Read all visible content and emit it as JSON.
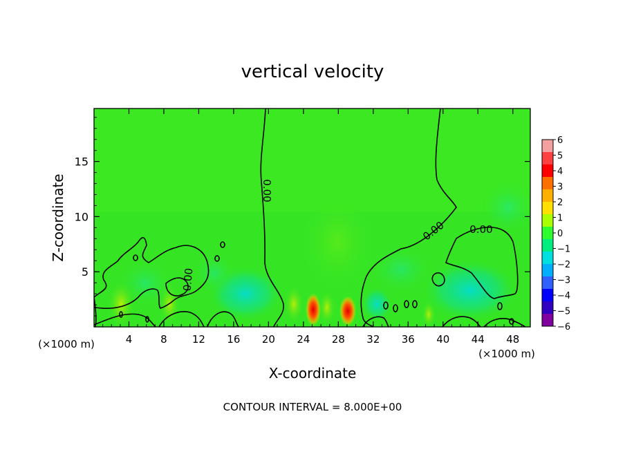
{
  "chart_data": {
    "type": "heatmap",
    "title": "vertical velocity",
    "xlabel": "X-coordinate",
    "ylabel": "Z-coordinate",
    "x_unit": "(×1000 m)",
    "y_unit": "(×1000 m)",
    "xlim": [
      0,
      50
    ],
    "ylim": [
      0,
      19.8
    ],
    "x_ticks": [
      "4",
      "8",
      "12",
      "16",
      "20",
      "24",
      "28",
      "32",
      "36",
      "40",
      "44",
      "48"
    ],
    "y_ticks": [
      "5",
      "10",
      "15"
    ],
    "colorbar": {
      "labels": [
        "6",
        "5",
        "4",
        "3",
        "2",
        "1",
        "0",
        "−1",
        "−2",
        "−3",
        "−4",
        "−5",
        "−6"
      ],
      "colors": [
        "#f5a0a0",
        "#ff4040",
        "#ff0000",
        "#ff7000",
        "#ffb000",
        "#ffe000",
        "#a8ff00",
        "#30ff30",
        "#00ee80",
        "#00e0e0",
        "#00b0ff",
        "#3060ff",
        "#0000ff",
        "#3000c0",
        "#8000a0"
      ]
    },
    "contour_labels": [
      "0.00",
      "0.00",
      "0.00",
      "0.00"
    ],
    "footer": "CONTOUR INTERVAL = 8.000E+00"
  },
  "colors": {
    "background_field": "#35e524",
    "upper_field": "#3fea1f",
    "updraft": "#ff0000",
    "downdraft": "#00e0e0"
  }
}
